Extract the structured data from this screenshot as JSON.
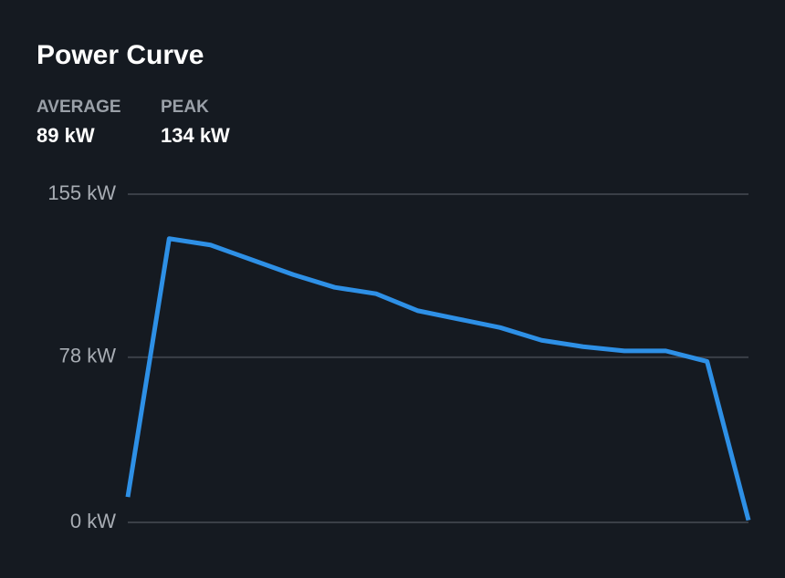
{
  "chart_data": {
    "type": "line",
    "title": "Power Curve",
    "stats": [
      {
        "label": "AVERAGE",
        "value": "89 kW"
      },
      {
        "label": "PEAK",
        "value": "134 kW"
      }
    ],
    "series": [
      {
        "color": "#2e90e6",
        "values": [
          12,
          134,
          131,
          124,
          117,
          111,
          108,
          100,
          96,
          92,
          86,
          83,
          81,
          81,
          76,
          1
        ]
      }
    ],
    "ylim": [
      0,
      155
    ],
    "yticks": [
      {
        "value": 0,
        "label": "0 kW"
      },
      {
        "value": 78,
        "label": "78 kW"
      },
      {
        "value": 155,
        "label": "155 kW"
      }
    ],
    "grid": true
  }
}
